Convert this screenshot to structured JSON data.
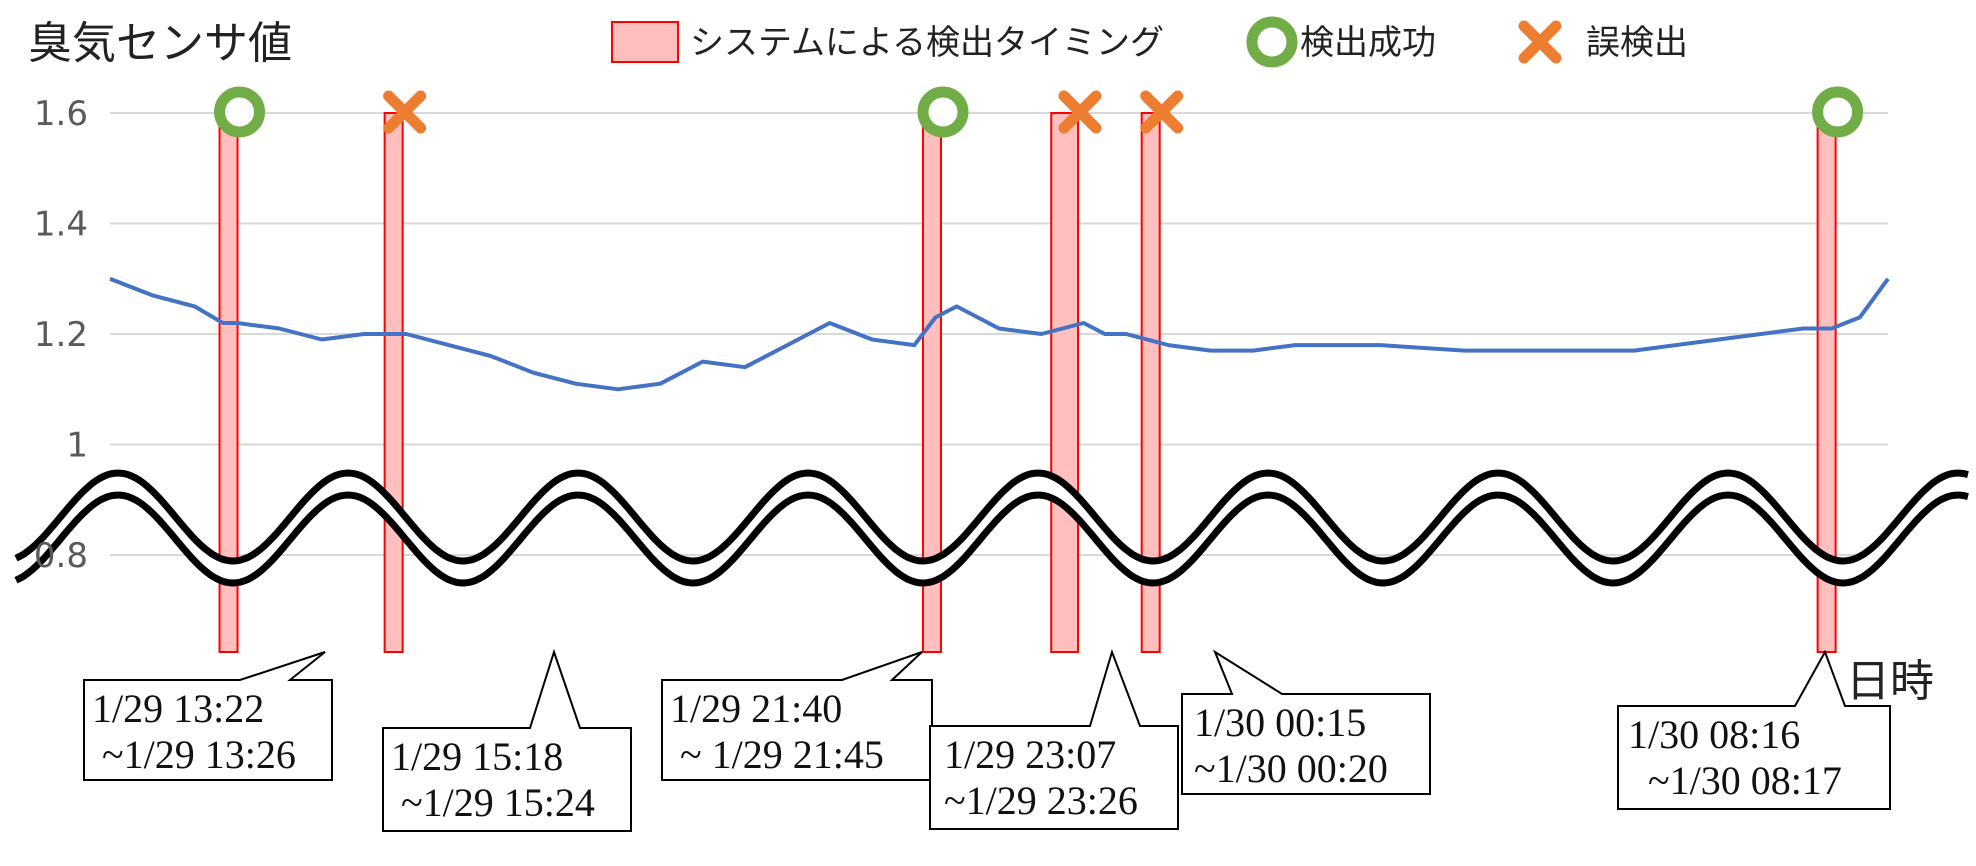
{
  "chart_data": {
    "type": "line",
    "title": "臭気センサ値",
    "xlabel": "日時",
    "y_ticks": [
      "1.6",
      "1.4",
      "1.2",
      "1",
      "0.8"
    ],
    "ylim": [
      0.8,
      1.6
    ],
    "axis_break": "between 0.8 and 1",
    "grid": true,
    "legend": [
      {
        "key": "detection",
        "label": "システムによる検出タイミング",
        "color": "#ffbfbf",
        "edge": "#ff0000"
      },
      {
        "key": "success",
        "label": "検出成功",
        "color": "#70ad47",
        "symbol": "circle"
      },
      {
        "key": "false",
        "label": "誤検出",
        "color": "#ed7d31",
        "symbol": "cross"
      }
    ],
    "series": [
      {
        "color": "#4472c4",
        "x": [
          "1/29 12:00",
          "1/29 12:30",
          "1/29 13:00",
          "1/29 13:20",
          "1/29 13:30",
          "1/29 14:00",
          "1/29 14:30",
          "1/29 15:00",
          "1/29 15:30",
          "1/29 16:00",
          "1/29 16:30",
          "1/29 17:00",
          "1/29 17:30",
          "1/29 18:00",
          "1/29 18:30",
          "1/29 19:00",
          "1/29 19:30",
          "1/29 20:00",
          "1/29 20:30",
          "1/29 21:00",
          "1/29 21:30",
          "1/29 21:45",
          "1/29 22:00",
          "1/29 22:30",
          "1/29 23:00",
          "1/29 23:15",
          "1/29 23:30",
          "1/29 23:45",
          "1/30 00:00",
          "1/30 00:30",
          "1/30 01:00",
          "1/30 01:30",
          "1/30 02:00",
          "1/30 03:00",
          "1/30 04:00",
          "1/30 05:00",
          "1/30 06:00",
          "1/30 07:00",
          "1/30 07:30",
          "1/30 08:00",
          "1/30 08:20",
          "1/30 08:40",
          "1/30 09:00"
        ],
        "y": [
          1.3,
          1.27,
          1.25,
          1.22,
          1.22,
          1.21,
          1.19,
          1.2,
          1.2,
          1.18,
          1.16,
          1.13,
          1.11,
          1.1,
          1.11,
          1.15,
          1.14,
          1.18,
          1.22,
          1.19,
          1.18,
          1.23,
          1.25,
          1.21,
          1.2,
          1.21,
          1.22,
          1.2,
          1.2,
          1.18,
          1.17,
          1.17,
          1.18,
          1.18,
          1.17,
          1.17,
          1.17,
          1.19,
          1.2,
          1.21,
          1.21,
          1.23,
          1.3
        ]
      }
    ],
    "detections": [
      {
        "start": "1/29 13:22",
        "end": "1/29 13:26",
        "result": "success",
        "label1": "1/29 13:22",
        "label2": " ~1/29 13:26"
      },
      {
        "start": "1/29 15:18",
        "end": "1/29 15:24",
        "result": "false",
        "label1": "1/29 15:18",
        "label2": " ~1/29 15:24"
      },
      {
        "start": "1/29 21:40",
        "end": "1/29 21:45",
        "result": "success",
        "label1": "1/29 21:40",
        "label2": " ~ 1/29 21:45"
      },
      {
        "start": "1/29 23:07",
        "end": "1/29 23:26",
        "result": "false",
        "label1": "1/29 23:07",
        "label2": "~1/29 23:26"
      },
      {
        "start": "1/30 00:15",
        "end": "1/30 00:20",
        "result": "false",
        "label1": "1/30 00:15",
        "label2": "~1/30 00:20"
      },
      {
        "start": "1/30 08:16",
        "end": "1/30 08:17",
        "result": "success",
        "label1": "1/30 08:16",
        "label2": "  ~1/30 08:17"
      }
    ]
  }
}
